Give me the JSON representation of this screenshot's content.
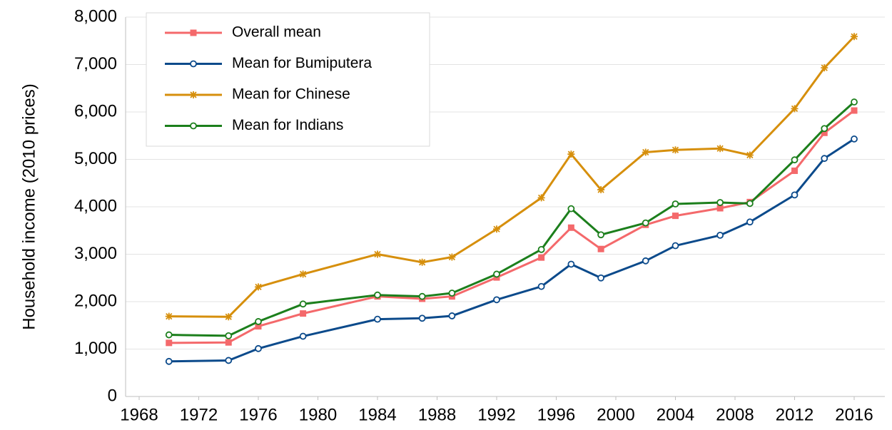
{
  "chart_data": {
    "type": "line",
    "y_label": "Household income (2010 prices)",
    "x": [
      1970,
      1974,
      1976,
      1979,
      1984,
      1987,
      1989,
      1992,
      1995,
      1997,
      1999,
      2002,
      2004,
      2007,
      2009,
      2012,
      2014,
      2016
    ],
    "series": [
      {
        "name": "Overall mean",
        "color": "#f4696b",
        "marker": "square",
        "values": [
          1130,
          1140,
          1480,
          1750,
          2110,
          2060,
          2110,
          2510,
          2930,
          3560,
          3110,
          3620,
          3810,
          3970,
          4100,
          4760,
          5560,
          6030
        ]
      },
      {
        "name": "Mean for Bumiputera",
        "color": "#0b4a8b",
        "marker": "circle",
        "values": [
          740,
          760,
          1010,
          1270,
          1630,
          1650,
          1700,
          2040,
          2320,
          2790,
          2500,
          2860,
          3180,
          3400,
          3680,
          4250,
          5020,
          5430
        ]
      },
      {
        "name": "Mean for Chinese",
        "color": "#d68f0c",
        "marker": "asterisk",
        "values": [
          1690,
          1680,
          2310,
          2580,
          3000,
          2830,
          2940,
          3530,
          4190,
          5110,
          4360,
          5150,
          5200,
          5230,
          5090,
          6070,
          6930,
          7590
        ]
      },
      {
        "name": "Mean for Indians",
        "color": "#1c7f1c",
        "marker": "circle",
        "values": [
          1300,
          1280,
          1580,
          1950,
          2140,
          2110,
          2180,
          2580,
          3100,
          3960,
          3410,
          3660,
          4060,
          4090,
          4070,
          4990,
          5650,
          6210
        ]
      }
    ],
    "xlim": [
      1968,
      2016
    ],
    "xticks": [
      1968,
      1972,
      1976,
      1980,
      1984,
      1988,
      1992,
      1996,
      2000,
      2004,
      2008,
      2012,
      2016
    ],
    "ylim": [
      0,
      8000
    ],
    "yticks": [
      0,
      {
        "value": 1000,
        "label": "1,000"
      },
      {
        "value": 2000,
        "label": "2,000"
      },
      {
        "value": 3000,
        "label": "3,000"
      },
      {
        "value": 4000,
        "label": "4,000"
      },
      {
        "value": 5000,
        "label": "5,000"
      },
      {
        "value": 6000,
        "label": "6,000"
      },
      {
        "value": 7000,
        "label": "7,000"
      },
      {
        "value": 8000,
        "label": "8,000"
      }
    ],
    "grid": true,
    "legend": "top-left"
  }
}
